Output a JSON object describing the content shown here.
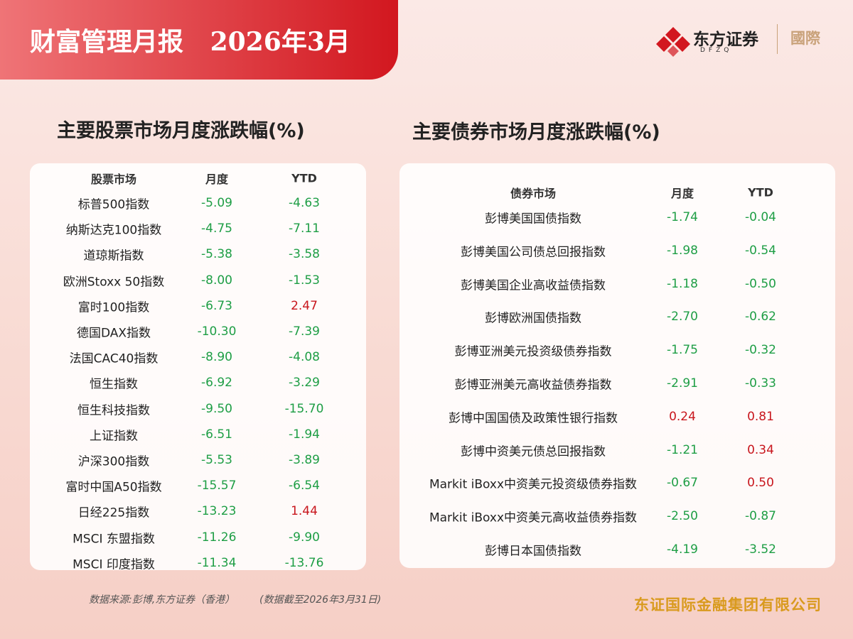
{
  "header": {
    "title": "财富管理月报",
    "date": "2026年3月",
    "logo_name": "东方证券",
    "logo_sub": "DFZQ",
    "logo_intl": "國際"
  },
  "equity": {
    "title": "主要股票市场月度涨跌幅(%)",
    "columns": [
      "股票市场",
      "月度",
      "YTD"
    ],
    "rows": [
      [
        "标普500指数",
        "-5.09",
        "-4.63"
      ],
      [
        "纳斯达克100指数",
        "-4.75",
        "-7.11"
      ],
      [
        "道琼斯指数",
        "-5.38",
        "-3.58"
      ],
      [
        "欧洲Stoxx 50指数",
        "-8.00",
        "-1.53"
      ],
      [
        "富时100指数",
        "-6.73",
        "2.47"
      ],
      [
        "德国DAX指数",
        "-10.30",
        "-7.39"
      ],
      [
        "法国CAC40指数",
        "-8.90",
        "-4.08"
      ],
      [
        "恒生指数",
        "-6.92",
        "-3.29"
      ],
      [
        "恒生科技指数",
        "-9.50",
        "-15.70"
      ],
      [
        "上证指数",
        "-6.51",
        "-1.94"
      ],
      [
        "沪深300指数",
        "-5.53",
        "-3.89"
      ],
      [
        "富时中国A50指数",
        "-15.57",
        "-6.54"
      ],
      [
        "日经225指数",
        "-13.23",
        "1.44"
      ],
      [
        "MSCI 东盟指数",
        "-11.26",
        "-9.90"
      ],
      [
        "MSCI 印度指数",
        "-11.34",
        "-13.76"
      ]
    ]
  },
  "bonds": {
    "title": "主要债券市场月度涨跌幅(%)",
    "columns": [
      "债券市场",
      "月度",
      "YTD"
    ],
    "rows": [
      [
        "彭博美国国债指数",
        "-1.74",
        "-0.04"
      ],
      [
        "彭博美国公司债总回报指数",
        "-1.98",
        "-0.54"
      ],
      [
        "彭博美国企业高收益债指数",
        "-1.18",
        "-0.50"
      ],
      [
        "彭博欧洲国债指数",
        "-2.70",
        "-0.62"
      ],
      [
        "彭博亚洲美元投资级债券指数",
        "-1.75",
        "-0.32"
      ],
      [
        "彭博亚洲美元高收益债券指数",
        "-2.91",
        "-0.33"
      ],
      [
        "彭博中国国债及政策性银行指数",
        "0.24",
        "0.81"
      ],
      [
        "彭博中资美元债总回报指数",
        "-1.21",
        "0.34"
      ],
      [
        "Markit iBoxx中资美元投资级债券指数",
        "-0.67",
        "0.50"
      ],
      [
        "Markit iBoxx中资美元高收益债券指数",
        "-2.50",
        "-0.87"
      ],
      [
        "彭博日本国债指数",
        "-4.19",
        "-3.52"
      ]
    ]
  },
  "footer": {
    "source": "数据来源:彭博,东方证券（香港）",
    "as_of": "(数据截至2026年3月31日)",
    "company": "东证国际金融集团有限公司"
  }
}
